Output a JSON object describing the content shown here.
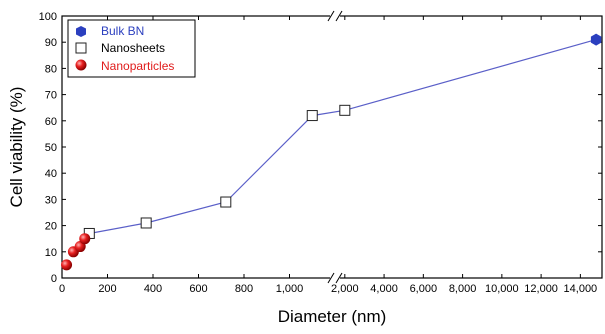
{
  "chart_data": {
    "type": "line",
    "xlabel": "Diameter (nm)",
    "ylabel": "Cell viability (%)",
    "ylim": [
      0,
      100
    ],
    "x_scale": "broken",
    "x_segments": [
      {
        "range": [
          0,
          1200
        ],
        "ticks": [
          0,
          200,
          400,
          600,
          800,
          1000
        ],
        "tick_labels": [
          "0",
          "200",
          "400",
          "600",
          "800",
          "1,000"
        ]
      },
      {
        "range": [
          1500,
          15000
        ],
        "ticks": [
          2000,
          4000,
          6000,
          8000,
          10000,
          12000,
          14000
        ],
        "tick_labels": [
          "2,000",
          "4,000",
          "6,000",
          "8,000",
          "10,000",
          "12,000",
          "14,000"
        ]
      }
    ],
    "y_ticks": [
      0,
      10,
      20,
      30,
      40,
      50,
      60,
      70,
      80,
      90,
      100
    ],
    "y_tick_labels": [
      "0",
      "10",
      "20",
      "30",
      "40",
      "50",
      "60",
      "70",
      "80",
      "90",
      "100"
    ],
    "legend_position": "top-left",
    "series": [
      {
        "name": "Bulk BN",
        "marker": "hexagon",
        "color": "#2b3fbf",
        "points": [
          {
            "x": 14800,
            "y": 91
          }
        ]
      },
      {
        "name": "Nanosheets",
        "marker": "open-square",
        "color": "#222222",
        "points": [
          {
            "x": 120,
            "y": 17
          },
          {
            "x": 370,
            "y": 21
          },
          {
            "x": 720,
            "y": 29
          },
          {
            "x": 1100,
            "y": 62
          },
          {
            "x": 2000,
            "y": 64
          }
        ]
      },
      {
        "name": "Nanoparticles",
        "marker": "sphere",
        "color": "#e01b1b",
        "points": [
          {
            "x": 20,
            "y": 5
          },
          {
            "x": 50,
            "y": 10
          },
          {
            "x": 80,
            "y": 12
          },
          {
            "x": 100,
            "y": 15
          }
        ]
      }
    ],
    "connecting_line": {
      "color": "#5a5fc8",
      "through": [
        {
          "x": 120,
          "y": 17
        },
        {
          "x": 370,
          "y": 21
        },
        {
          "x": 720,
          "y": 29
        },
        {
          "x": 1100,
          "y": 62
        },
        {
          "x": 2000,
          "y": 64
        },
        {
          "x": 14800,
          "y": 91
        }
      ]
    }
  }
}
